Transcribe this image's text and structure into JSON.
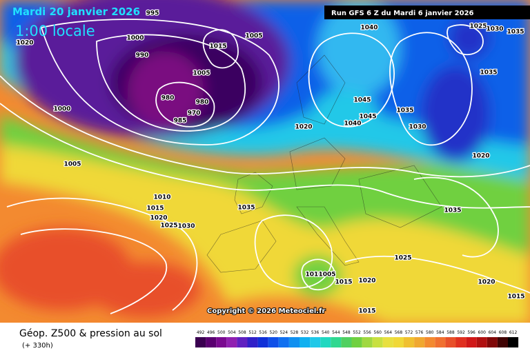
{
  "header": {
    "date": "Mardi 20 janvier 2026",
    "time": "1:00 locale",
    "run": "Run GFS 6 Z du Mardi 6 janvier 2026"
  },
  "copyright": "Copyright © 2026 Meteociel.fr",
  "footer": {
    "title": "Géop. Z500 & pression au sol",
    "lead": "(+ 330h)"
  },
  "isobar_labels": [
    995,
    1020,
    1000,
    990,
    1015,
    1005,
    1040,
    1025,
    1030,
    1035,
    1005,
    1035,
    980,
    980,
    970,
    985,
    1000,
    1045,
    1045,
    1040,
    1035,
    1030,
    1020,
    1020,
    1005,
    1010,
    1015,
    1020,
    1025,
    1030,
    1035,
    1035,
    1025,
    1010,
    1005,
    1015,
    1020,
    1020,
    1015,
    1015
  ],
  "scale": {
    "labels": [
      492,
      496,
      500,
      504,
      508,
      512,
      516,
      520,
      524,
      528,
      532,
      536,
      540,
      544,
      548,
      552,
      556,
      560,
      564,
      568,
      572,
      576,
      580,
      584,
      588,
      592,
      596,
      600,
      604,
      608,
      612
    ]
  }
}
